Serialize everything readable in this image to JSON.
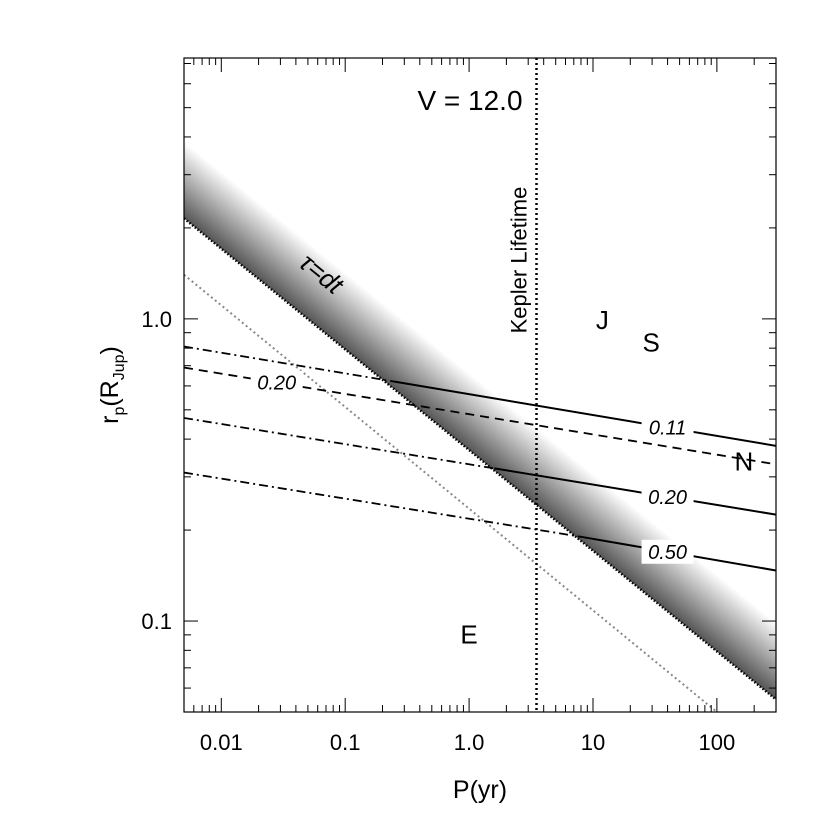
{
  "chart_data": {
    "type": "line",
    "title": "V = 12.0",
    "xlabel": "P(yr)",
    "ylabel_main": "r",
    "ylabel_sub": "p",
    "ylabel_paren_open": "(R",
    "ylabel_paren_sub": "Jup",
    "ylabel_paren_close": ")",
    "x_scale": "log",
    "y_scale": "log",
    "xlim": [
      0.005,
      300
    ],
    "ylim": [
      0.05,
      7.3
    ],
    "x_ticks": [
      {
        "value": 0.01,
        "label": "0.01"
      },
      {
        "value": 0.1,
        "label": "0.1"
      },
      {
        "value": 1.0,
        "label": "1.0"
      },
      {
        "value": 10,
        "label": "10"
      },
      {
        "value": 100,
        "label": "100"
      }
    ],
    "y_ticks": [
      {
        "value": 0.1,
        "label": "0.1"
      },
      {
        "value": 1.0,
        "label": "1.0"
      }
    ],
    "grid": false,
    "kepler_lifetime": {
      "period": 3.5,
      "label": "Kepler Lifetime"
    },
    "band": {
      "label": "τ=dt",
      "lower_edge": [
        [
          0.005,
          2.15
        ],
        [
          300,
          0.055
        ]
      ],
      "width_factor": 1.8,
      "colors": [
        "#555555",
        "#ffffff"
      ]
    },
    "gray_dotted_line": [
      [
        0.005,
        1.4
      ],
      [
        100,
        0.05
      ]
    ],
    "dashed_line": {
      "label": "0.20",
      "points": [
        [
          0.005,
          0.69
        ],
        [
          300,
          0.33
        ]
      ]
    },
    "dashdot_lines": [
      {
        "points": [
          [
            0.005,
            0.81
          ],
          [
            0.25,
            0.62
          ]
        ]
      },
      {
        "points": [
          [
            0.005,
            0.47
          ],
          [
            1.6,
            0.32
          ]
        ]
      },
      {
        "points": [
          [
            0.005,
            0.31
          ],
          [
            8.0,
            0.19
          ]
        ]
      }
    ],
    "solid_lines": [
      {
        "label": "0.11",
        "points": [
          [
            0.25,
            0.62
          ],
          [
            300,
            0.38
          ]
        ]
      },
      {
        "label": "0.20",
        "points": [
          [
            1.6,
            0.32
          ],
          [
            300,
            0.225
          ]
        ]
      },
      {
        "label": "0.50",
        "points": [
          [
            8.0,
            0.19
          ],
          [
            300,
            0.147
          ]
        ]
      }
    ],
    "planets": [
      {
        "name": "J",
        "period": 11.9,
        "radius": 1.0
      },
      {
        "name": "S",
        "period": 29.5,
        "radius": 0.84
      },
      {
        "name": "N",
        "period": 165,
        "radius": 0.34
      },
      {
        "name": "E",
        "period": 1.0,
        "radius": 0.091
      }
    ]
  }
}
